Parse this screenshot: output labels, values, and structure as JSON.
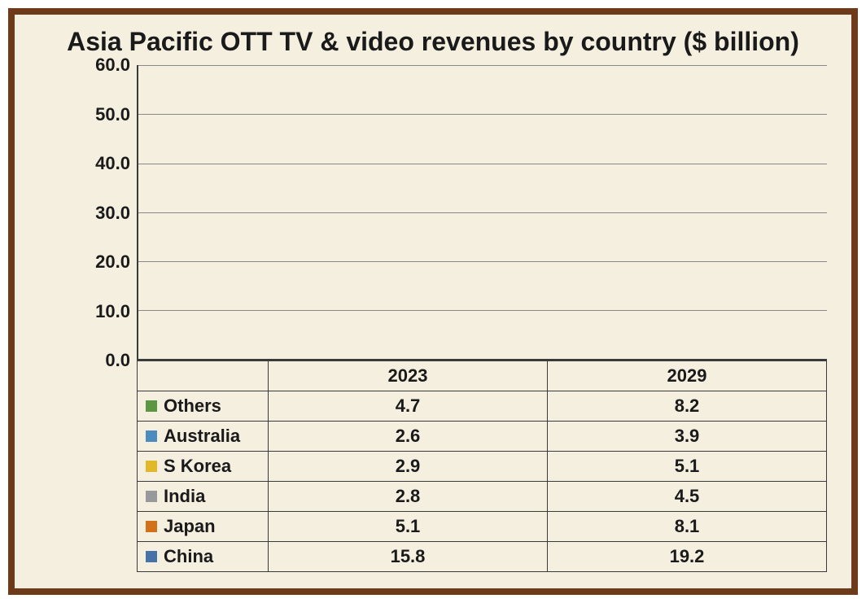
{
  "chart": {
    "type": "stacked-bar",
    "title": "Asia Pacific OTT TV & video revenues by country ($ billion)",
    "title_fontsize": 32,
    "background_color": "#f5efe0",
    "border_color": "#6d3a1a",
    "axis_color": "#3a3a3a",
    "grid_color": "#888888",
    "label_fontsize": 22,
    "tick_fontsize": 22,
    "categories": [
      "2023",
      "2029"
    ],
    "ymin": 0,
    "ymax": 60,
    "ytick_step": 10,
    "yticks": [
      "0.0",
      "10.0",
      "20.0",
      "30.0",
      "40.0",
      "50.0",
      "60.0"
    ],
    "bar_width_pct": 56,
    "series": [
      {
        "name": "China",
        "color": "#4573a7",
        "values": [
          15.8,
          19.2
        ]
      },
      {
        "name": "Japan",
        "color": "#d1711a",
        "values": [
          5.1,
          8.1
        ]
      },
      {
        "name": "India",
        "color": "#97999b",
        "values": [
          2.8,
          4.5
        ]
      },
      {
        "name": "S Korea",
        "color": "#e0b82a",
        "values": [
          2.9,
          5.1
        ]
      },
      {
        "name": "Australia",
        "color": "#4a8bc0",
        "values": [
          2.6,
          3.9
        ]
      },
      {
        "name": "Others",
        "color": "#5b9743",
        "values": [
          4.7,
          8.2
        ]
      }
    ]
  }
}
